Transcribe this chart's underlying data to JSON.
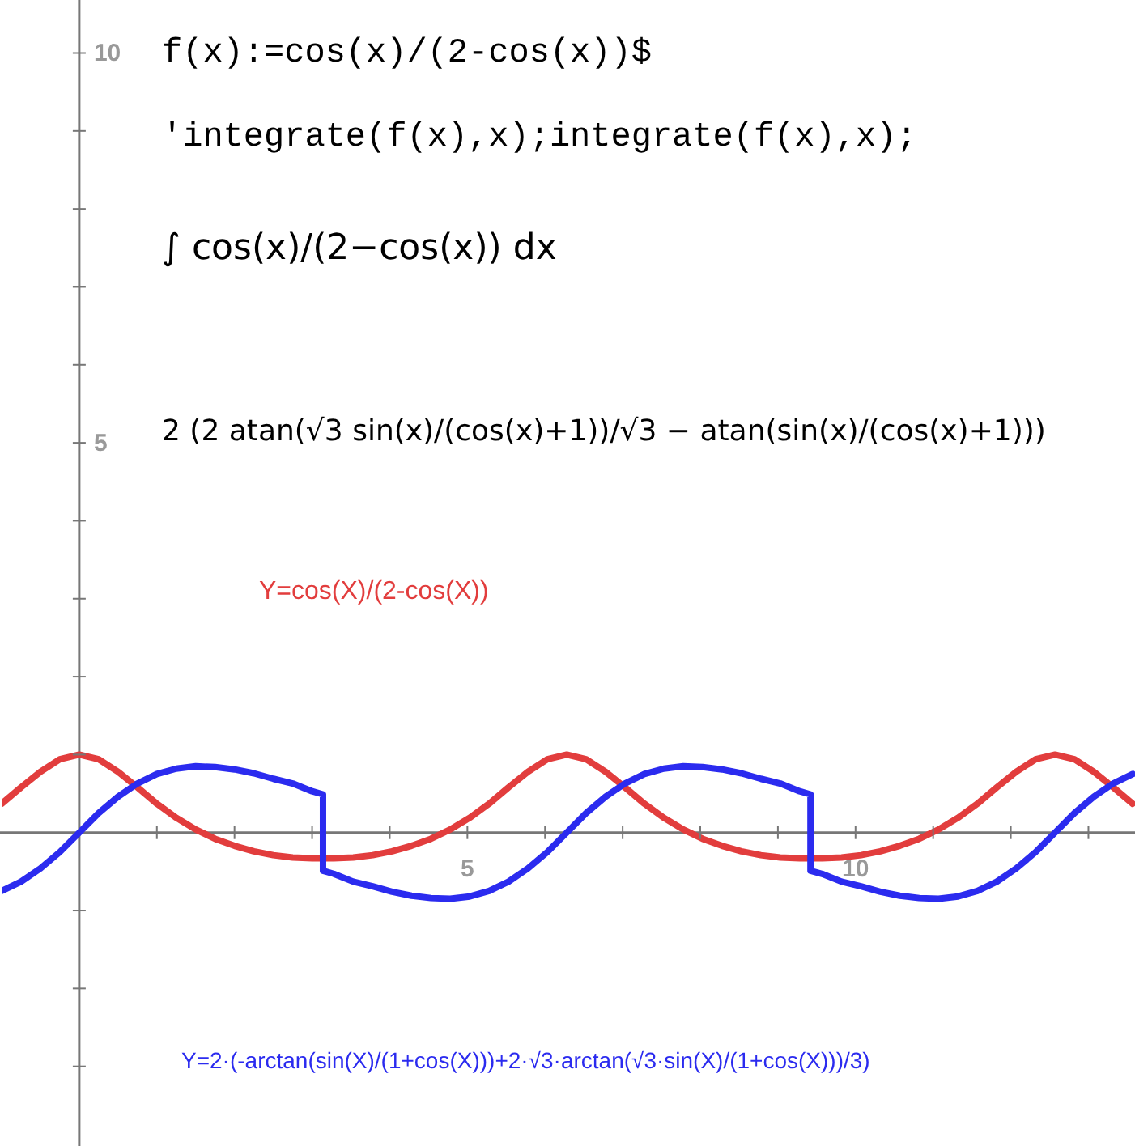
{
  "chart_data": {
    "type": "line",
    "annotations": [
      "f(x):=cos(x)/(2-cos(x))$",
      "'integrate(f(x),x);integrate(f(x),x);",
      "∫ cos(x)/(2−cos(x)) dx",
      "2 (2 atan(√3 sin(x)/(cos(x)+1))/√3 − atan(sin(x)/(cos(x)+1)))"
    ],
    "xlim": [
      -1.0,
      13.6
    ],
    "ylim": [
      -4.0,
      10.68
    ],
    "xticks": [
      {
        "value": 1,
        "label": null
      },
      {
        "value": 2,
        "label": null
      },
      {
        "value": 3,
        "label": null
      },
      {
        "value": 4,
        "label": null
      },
      5,
      {
        "value": 6,
        "label": null
      },
      {
        "value": 7,
        "label": null
      },
      {
        "value": 8,
        "label": null
      },
      {
        "value": 9,
        "label": null
      },
      10,
      {
        "value": 11,
        "label": null
      },
      {
        "value": 12,
        "label": null
      },
      {
        "value": 13,
        "label": null
      }
    ],
    "yticks": [
      {
        "value": -3,
        "label": null
      },
      {
        "value": -2,
        "label": null
      },
      {
        "value": -1,
        "label": null
      },
      {
        "value": 1,
        "label": null
      },
      {
        "value": 2,
        "label": null
      },
      {
        "value": 3,
        "label": null
      },
      {
        "value": 4,
        "label": null
      },
      5,
      {
        "value": 6,
        "label": null
      },
      {
        "value": 7,
        "label": null
      },
      {
        "value": 8,
        "label": null
      },
      {
        "value": 9,
        "label": null
      },
      10
    ],
    "grid": false,
    "marker": "none",
    "line_style": "solid",
    "series": [
      {
        "name": "Y=cos(X)/(2-cos(X))",
        "color": "#e23d3d",
        "x": [
          -1,
          -0.75,
          -0.5,
          -0.25,
          0,
          0.25,
          0.5,
          0.75,
          1,
          1.25,
          1.5,
          1.75,
          2,
          2.25,
          2.5,
          2.75,
          3,
          3.14,
          3.28,
          3.53,
          3.78,
          4.03,
          4.28,
          4.53,
          4.78,
          5.03,
          5.28,
          5.53,
          5.78,
          6.03,
          6.28,
          6.53,
          6.78,
          7.03,
          7.28,
          7.53,
          7.78,
          8.03,
          8.28,
          8.53,
          8.78,
          9.03,
          9.28,
          9.42,
          9.57,
          9.82,
          10.07,
          10.32,
          10.57,
          10.82,
          11.07,
          11.32,
          11.57,
          11.82,
          12.07,
          12.32,
          12.57,
          12.82,
          13.07,
          13.32,
          13.57
        ],
        "values": [
          0.37,
          0.58,
          0.78,
          0.94,
          1,
          0.94,
          0.78,
          0.58,
          0.37,
          0.19,
          0.04,
          -0.08,
          -0.17,
          -0.24,
          -0.29,
          -0.32,
          -0.33,
          -0.33,
          -0.33,
          -0.32,
          -0.29,
          -0.24,
          -0.17,
          -0.08,
          0.04,
          0.19,
          0.37,
          0.58,
          0.78,
          0.94,
          1,
          0.94,
          0.78,
          0.58,
          0.37,
          0.19,
          0.04,
          -0.08,
          -0.17,
          -0.24,
          -0.29,
          -0.32,
          -0.33,
          -0.33,
          -0.33,
          -0.32,
          -0.29,
          -0.24,
          -0.17,
          -0.08,
          0.04,
          0.19,
          0.37,
          0.58,
          0.78,
          0.94,
          1,
          0.94,
          0.78,
          0.58,
          0.37
        ]
      },
      {
        "name": "Y=2·(-arctan(sin(X)/(1+cos(X)))+2·√3·arctan(√3·sin(X)/(1+cos(X)))/3)",
        "color": "#2b2bef",
        "x": [
          -1,
          -0.75,
          -0.5,
          -0.25,
          0,
          0.25,
          0.5,
          0.75,
          1,
          1.25,
          1.5,
          1.75,
          2,
          2.25,
          2.5,
          2.75,
          3,
          3.14,
          3.14,
          3.28,
          3.53,
          3.78,
          4.03,
          4.28,
          4.53,
          4.78,
          5.03,
          5.28,
          5.53,
          5.78,
          6.03,
          6.28,
          6.53,
          6.78,
          7.03,
          7.28,
          7.53,
          7.78,
          8.03,
          8.28,
          8.53,
          8.78,
          9.03,
          9.28,
          9.42,
          9.42,
          9.57,
          9.82,
          10.07,
          10.32,
          10.57,
          10.82,
          11.07,
          11.32,
          11.57,
          11.82,
          12.07,
          12.32,
          12.57,
          12.82,
          13.07,
          13.32,
          13.57
        ],
        "values": [
          -0.75,
          -0.63,
          -0.46,
          -0.25,
          0,
          0.25,
          0.46,
          0.63,
          0.75,
          0.82,
          0.85,
          0.84,
          0.81,
          0.76,
          0.69,
          0.63,
          0.53,
          0.49,
          -0.49,
          -0.53,
          -0.63,
          -0.69,
          -0.76,
          -0.81,
          -0.84,
          -0.85,
          -0.82,
          -0.75,
          -0.63,
          -0.46,
          -0.25,
          0,
          0.25,
          0.46,
          0.63,
          0.75,
          0.82,
          0.85,
          0.84,
          0.81,
          0.76,
          0.69,
          0.63,
          0.53,
          0.49,
          -0.49,
          -0.53,
          -0.63,
          -0.69,
          -0.76,
          -0.81,
          -0.84,
          -0.85,
          -0.82,
          -0.75,
          -0.63,
          -0.46,
          -0.25,
          0,
          0.25,
          0.46,
          0.63,
          0.75
        ]
      }
    ]
  }
}
